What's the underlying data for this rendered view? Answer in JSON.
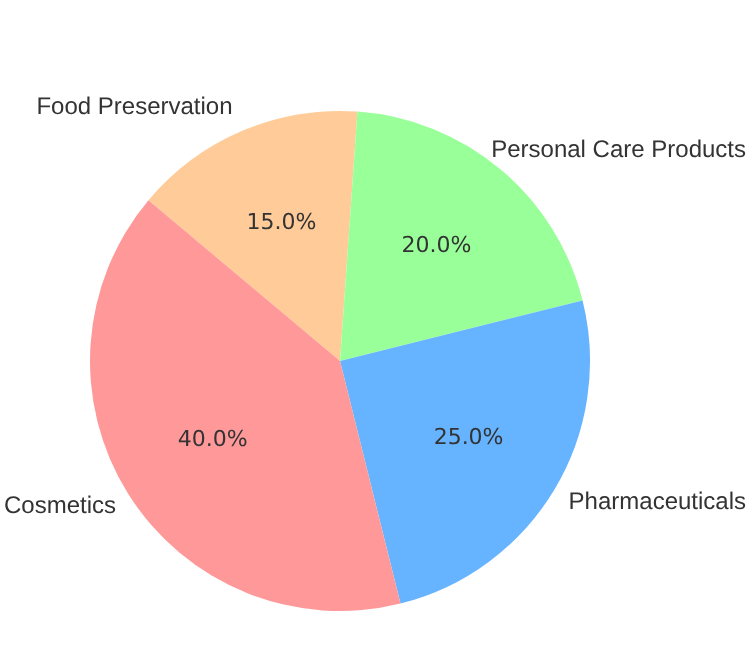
{
  "chart_data": {
    "type": "pie",
    "categories": [
      "Food Preservation",
      "Personal Care Products",
      "Pharmaceuticals",
      "Cosmetics"
    ],
    "values": [
      15,
      20,
      25,
      40
    ],
    "colors": [
      "#ffcc99",
      "#99ff99",
      "#66b3ff",
      "#ff9999"
    ],
    "value_labels": [
      "15.0%",
      "20.0%",
      "25.0%",
      "40.0%"
    ]
  }
}
